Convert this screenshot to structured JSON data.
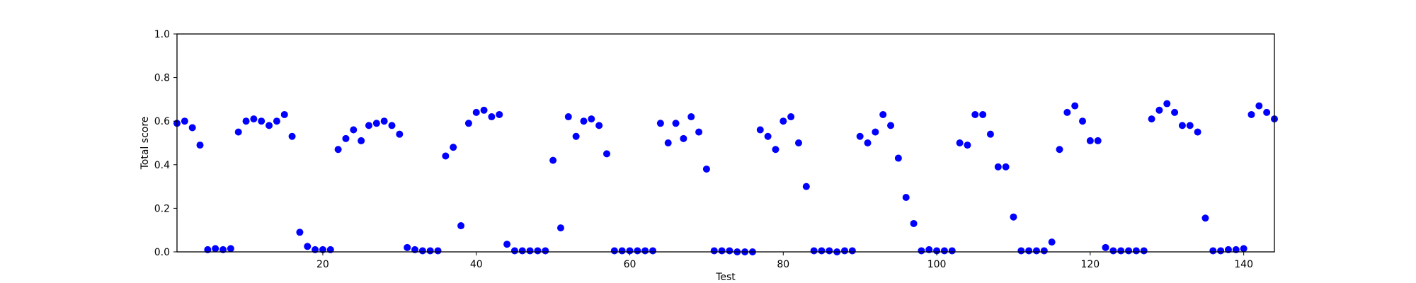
{
  "chart_data": {
    "type": "scatter",
    "title": "",
    "xlabel": "Test",
    "ylabel": "Total score",
    "xlim": [
      1,
      144
    ],
    "ylim": [
      0.0,
      1.0
    ],
    "xticks": [
      20,
      40,
      60,
      80,
      100,
      120,
      140
    ],
    "yticks": [
      0.0,
      0.2,
      0.4,
      0.6,
      0.8,
      1.0
    ],
    "xtick_labels": [
      "20",
      "40",
      "60",
      "80",
      "100",
      "120",
      "140"
    ],
    "ytick_labels": [
      "0.0",
      "0.2",
      "0.4",
      "0.6",
      "0.8",
      "1.0"
    ],
    "grid": false,
    "marker_color": "#0000ff",
    "series": [
      {
        "x": [
          1,
          2,
          3,
          4,
          5,
          6,
          7,
          8,
          9,
          10,
          11,
          12,
          13,
          14,
          15,
          16,
          17,
          18,
          19,
          20,
          21,
          22,
          23,
          24,
          25,
          26,
          27,
          28,
          29,
          30,
          31,
          32,
          33,
          34,
          35,
          36,
          37,
          38,
          39,
          40,
          41,
          42,
          43,
          44,
          45,
          46,
          47,
          48,
          49,
          50,
          51,
          52,
          53,
          54,
          55,
          56,
          57,
          58,
          59,
          60,
          61,
          62,
          63,
          64,
          65,
          66,
          67,
          68,
          69,
          70,
          71,
          72,
          73,
          74,
          75,
          76,
          77,
          78,
          79,
          80,
          81,
          82,
          83,
          84,
          85,
          86,
          87,
          88,
          89,
          90,
          91,
          92,
          93,
          94,
          95,
          96,
          97,
          98,
          99,
          100,
          101,
          102,
          103,
          104,
          105,
          106,
          107,
          108,
          109,
          110,
          111,
          112,
          113,
          114,
          115,
          116,
          117,
          118,
          119,
          120,
          121,
          122,
          123,
          124,
          125,
          126,
          127,
          128,
          129,
          130,
          131,
          132,
          133,
          134,
          135,
          136,
          137,
          138,
          139,
          140,
          141,
          142,
          143,
          144
        ],
        "y": [
          0.59,
          0.6,
          0.57,
          0.49,
          0.01,
          0.015,
          0.01,
          0.015,
          0.55,
          0.6,
          0.61,
          0.6,
          0.58,
          0.6,
          0.63,
          0.53,
          0.09,
          0.025,
          0.01,
          0.01,
          0.01,
          0.47,
          0.52,
          0.56,
          0.51,
          0.58,
          0.59,
          0.6,
          0.58,
          0.54,
          0.02,
          0.01,
          0.005,
          0.005,
          0.005,
          0.44,
          0.48,
          0.12,
          0.59,
          0.64,
          0.65,
          0.62,
          0.63,
          0.035,
          0.005,
          0.005,
          0.005,
          0.005,
          0.005,
          0.42,
          0.11,
          0.62,
          0.53,
          0.6,
          0.61,
          0.58,
          0.45,
          0.005,
          0.005,
          0.005,
          0.005,
          0.005,
          0.005,
          0.59,
          0.5,
          0.59,
          0.52,
          0.62,
          0.55,
          0.38,
          0.005,
          0.005,
          0.005,
          0.0,
          0.0,
          0.0,
          0.56,
          0.53,
          0.47,
          0.6,
          0.62,
          0.5,
          0.3,
          0.005,
          0.005,
          0.005,
          0.0,
          0.005,
          0.005,
          0.53,
          0.5,
          0.55,
          0.63,
          0.58,
          0.43,
          0.25,
          0.13,
          0.005,
          0.01,
          0.005,
          0.005,
          0.005,
          0.5,
          0.49,
          0.63,
          0.63,
          0.54,
          0.39,
          0.39,
          0.16,
          0.005,
          0.005,
          0.005,
          0.005,
          0.045,
          0.47,
          0.64,
          0.67,
          0.6,
          0.51,
          0.51,
          0.02,
          0.005,
          0.005,
          0.005,
          0.005,
          0.005,
          0.61,
          0.65,
          0.68,
          0.64,
          0.58,
          0.58,
          0.55,
          0.155,
          0.005,
          0.005,
          0.01,
          0.01,
          0.015,
          0.63,
          0.67,
          0.64,
          0.61
        ]
      }
    ]
  }
}
